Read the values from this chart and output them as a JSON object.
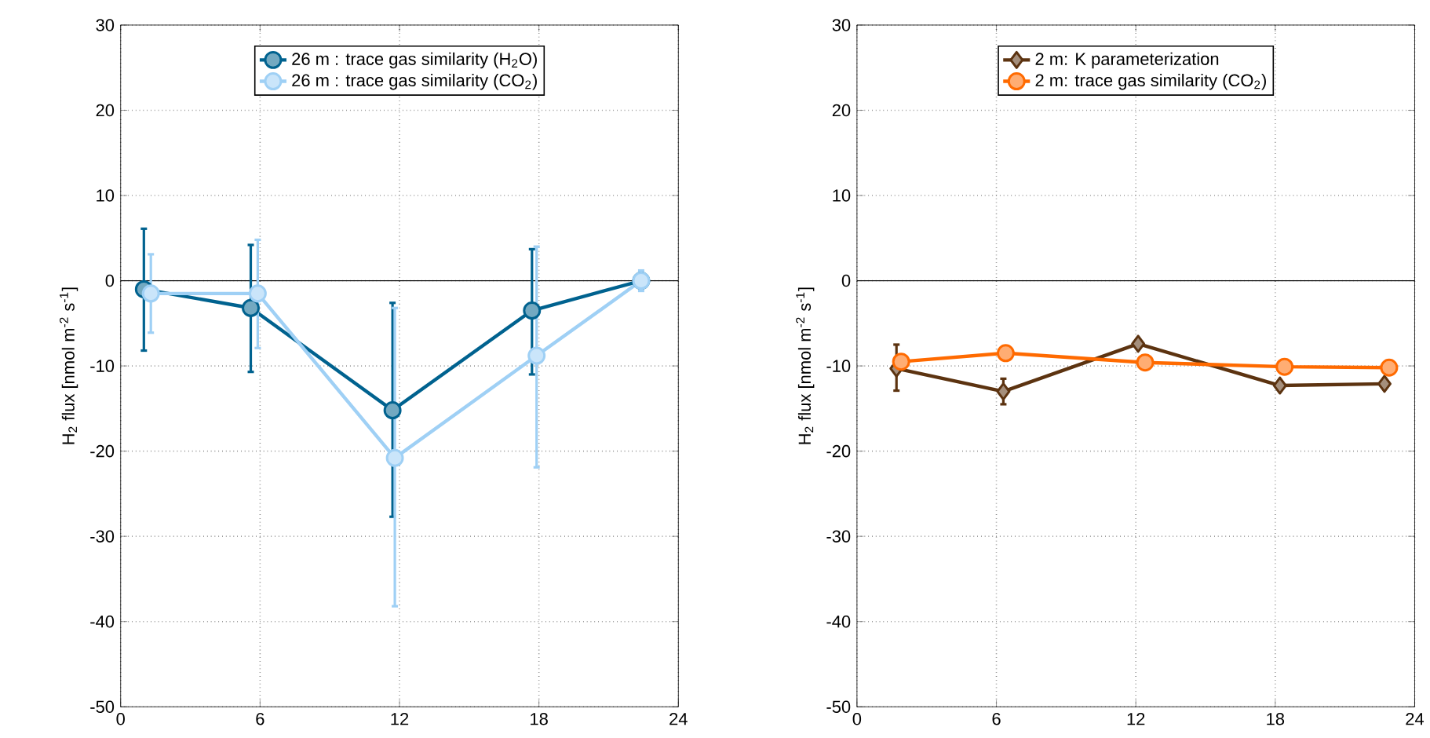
{
  "chart_data": [
    {
      "type": "line",
      "ylabel": "H$_{2}$ flux [nmol m$^{-2}$ s$^{-1}$]",
      "xlim": [
        0,
        24
      ],
      "xticks": [
        0,
        6,
        12,
        18,
        24
      ],
      "ylim": [
        -50,
        30
      ],
      "yticks": [
        -50,
        -40,
        -30,
        -20,
        -10,
        0,
        10,
        20,
        30
      ],
      "grid": true,
      "legend": "top",
      "marker": "circle",
      "line_style": "solid",
      "ref_lines": [
        {
          "axis": "y",
          "value": 0,
          "color": "#000000"
        }
      ],
      "series": [
        {
          "name": "26 m : trace gas similarity (H$_{2}$O)",
          "color": "#00628f",
          "x": [
            1.0,
            5.6,
            11.7,
            17.7,
            22.4
          ],
          "values": [
            -1.0,
            -3.2,
            -15.2,
            -3.5,
            0.0
          ],
          "errors": [
            [
              -8.2,
              6.1
            ],
            [
              -10.7,
              4.2
            ],
            [
              -27.7,
              -2.6
            ],
            [
              -11.0,
              3.7
            ],
            null
          ]
        },
        {
          "name": "26 m : trace gas similarity (CO$_{2}$)",
          "color": "#9fd0f5",
          "x": [
            1.3,
            5.9,
            11.8,
            17.9,
            22.4
          ],
          "values": [
            -1.5,
            -1.5,
            -20.8,
            -8.8,
            0.0
          ],
          "errors": [
            [
              -6.1,
              3.1
            ],
            [
              -7.9,
              4.8
            ],
            [
              -38.2,
              -3.2
            ],
            [
              -21.9,
              4.0
            ],
            [
              -1.2,
              1.2
            ]
          ]
        }
      ]
    },
    {
      "type": "line",
      "ylabel": "H$_{2}$ flux [nmol m$^{-2}$ s$^{-1}$]",
      "xlim": [
        0,
        24
      ],
      "xticks": [
        0,
        6,
        12,
        18,
        24
      ],
      "ylim": [
        -50,
        30
      ],
      "yticks": [
        -50,
        -40,
        -30,
        -20,
        -10,
        0,
        10,
        20,
        30
      ],
      "grid": true,
      "legend": "top",
      "line_style": "solid",
      "ref_lines": [
        {
          "axis": "y",
          "value": 0,
          "color": "#000000"
        }
      ],
      "series": [
        {
          "name": "2 m: K parameterization",
          "color": "#5c3310",
          "marker": "diamond",
          "x": [
            1.7,
            6.3,
            12.1,
            18.2,
            22.7
          ],
          "values": [
            -10.3,
            -13.0,
            -7.4,
            -12.3,
            -12.1
          ],
          "errors": [
            [
              -12.9,
              -7.5
            ],
            [
              -14.5,
              -11.5
            ],
            null,
            null,
            null
          ]
        },
        {
          "name": "2 m: trace gas similarity (CO$_{2}$)",
          "color": "#ff6a00",
          "marker": "circle",
          "x": [
            1.9,
            6.4,
            12.4,
            18.4,
            22.9
          ],
          "values": [
            -9.5,
            -8.5,
            -9.6,
            -10.1,
            -10.2
          ]
        }
      ]
    }
  ]
}
